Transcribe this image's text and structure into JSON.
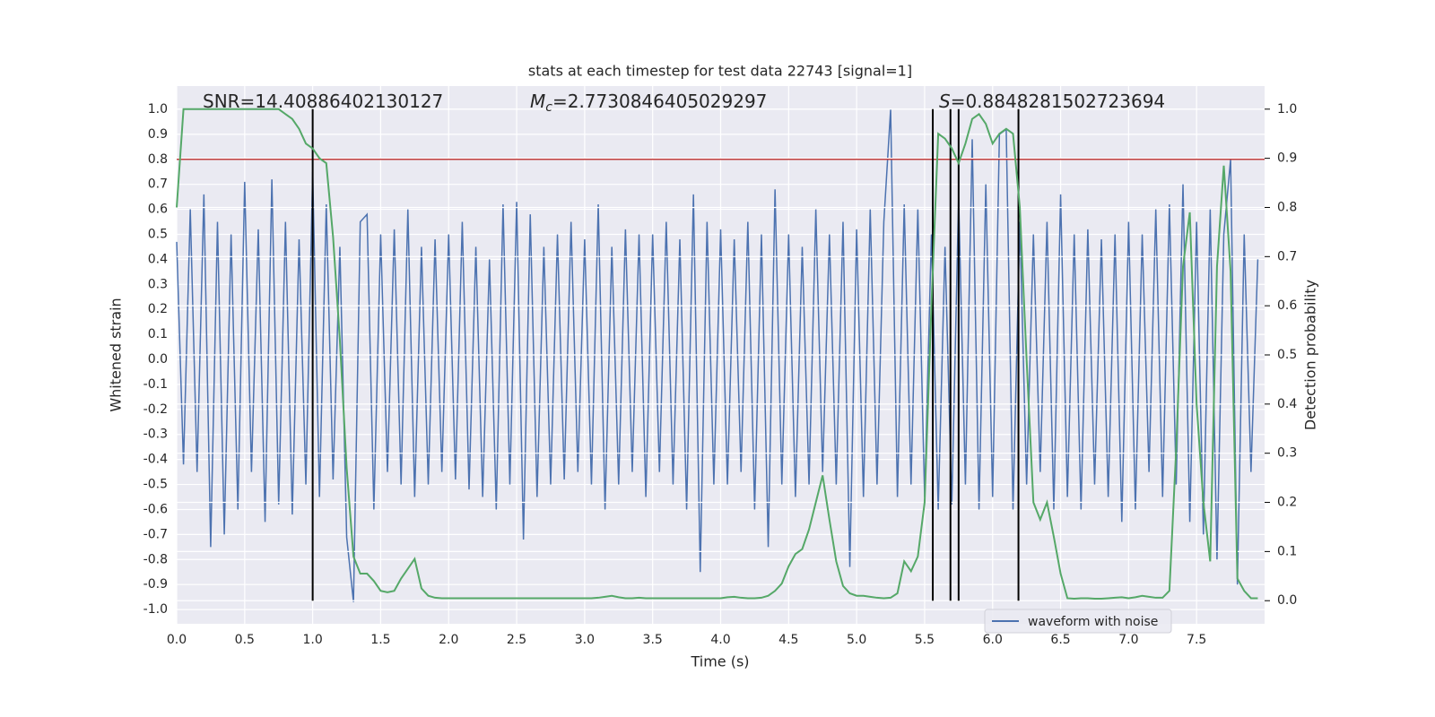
{
  "chart_data": {
    "type": "line",
    "title": "stats at each timestep for test data 22743 [signal=1]",
    "x_label": "Time (s)",
    "y_label": "Whitened strain",
    "y2_label": "Detection probability",
    "xlim": [
      0,
      8
    ],
    "ylim": [
      -1.057,
      1.093
    ],
    "y2lim": [
      -0.047,
      1.047
    ],
    "xticks": [
      {
        "value": 0,
        "label": "0.0"
      },
      0.5,
      {
        "value": 1,
        "label": "1.0"
      },
      1.5,
      {
        "value": 2,
        "label": "2.0"
      },
      2.5,
      {
        "value": 3,
        "label": "3.0"
      },
      3.5,
      {
        "value": 4,
        "label": "4.0"
      },
      4.5,
      {
        "value": 5,
        "label": "5.0"
      },
      5.5,
      {
        "value": 6,
        "label": "6.0"
      },
      6.5,
      {
        "value": 7,
        "label": "7.0"
      },
      7.5
    ],
    "yticks": [
      {
        "value": -1,
        "label": "-1.0"
      },
      -0.9,
      -0.8,
      -0.7,
      -0.6,
      -0.5,
      -0.4,
      -0.3,
      -0.2,
      -0.1,
      {
        "value": 0,
        "label": "0.0"
      },
      0.1,
      0.2,
      0.3,
      0.4,
      0.5,
      0.6,
      0.7,
      0.8,
      0.9,
      {
        "value": 1,
        "label": "1.0"
      }
    ],
    "y2ticks": [
      {
        "value": 0,
        "label": "0.0"
      },
      0.1,
      0.2,
      0.3,
      0.4,
      0.5,
      0.6,
      0.7,
      0.8,
      0.9,
      {
        "value": 1,
        "label": "1.0"
      }
    ],
    "grid": true,
    "legend": "lower right",
    "x": [
      0,
      0.05,
      0.1,
      0.15,
      0.2,
      0.25,
      0.3,
      0.35,
      0.4,
      0.45,
      0.5,
      0.55,
      0.6,
      0.65,
      0.7,
      0.75,
      0.8,
      0.85,
      0.9,
      0.95,
      1,
      1.05,
      1.1,
      1.15,
      1.2,
      1.25,
      1.3,
      1.35,
      1.4,
      1.45,
      1.5,
      1.55,
      1.6,
      1.65,
      1.7,
      1.75,
      1.8,
      1.85,
      1.9,
      1.95,
      2,
      2.05,
      2.1,
      2.15,
      2.2,
      2.25,
      2.3,
      2.35,
      2.4,
      2.45,
      2.5,
      2.55,
      2.6,
      2.65,
      2.7,
      2.75,
      2.8,
      2.85,
      2.9,
      2.95,
      3,
      3.05,
      3.1,
      3.15,
      3.2,
      3.25,
      3.3,
      3.35,
      3.4,
      3.45,
      3.5,
      3.55,
      3.6,
      3.65,
      3.7,
      3.75,
      3.8,
      3.85,
      3.9,
      3.95,
      4,
      4.05,
      4.1,
      4.15,
      4.2,
      4.25,
      4.3,
      4.35,
      4.4,
      4.45,
      4.5,
      4.55,
      4.6,
      4.65,
      4.7,
      4.75,
      4.8,
      4.85,
      4.9,
      4.95,
      5,
      5.05,
      5.1,
      5.15,
      5.2,
      5.25,
      5.3,
      5.35,
      5.4,
      5.45,
      5.5,
      5.55,
      5.6,
      5.65,
      5.7,
      5.75,
      5.8,
      5.85,
      5.9,
      5.95,
      6,
      6.05,
      6.1,
      6.15,
      6.2,
      6.25,
      6.3,
      6.35,
      6.4,
      6.45,
      6.5,
      6.55,
      6.6,
      6.65,
      6.7,
      6.75,
      6.8,
      6.85,
      6.9,
      6.95,
      7,
      7.05,
      7.1,
      7.15,
      7.2,
      7.25,
      7.3,
      7.35,
      7.4,
      7.45,
      7.5,
      7.55,
      7.6,
      7.65,
      7.7,
      7.75,
      7.8,
      7.85,
      7.9,
      7.95
    ],
    "series": [
      {
        "name": "waveform with noise",
        "color": "#4c72b0",
        "values": [
          0.47,
          -0.42,
          0.6,
          -0.45,
          0.66,
          -0.75,
          0.55,
          -0.7,
          0.5,
          -0.6,
          0.71,
          -0.45,
          0.52,
          -0.65,
          0.72,
          -0.58,
          0.55,
          -0.62,
          0.48,
          -0.5,
          0.75,
          -0.55,
          0.62,
          -0.48,
          0.45,
          -0.71,
          -0.97,
          0.55,
          0.58,
          -0.6,
          0.5,
          -0.45,
          0.52,
          -0.5,
          0.6,
          -0.55,
          0.45,
          -0.5,
          0.48,
          -0.45,
          0.5,
          -0.48,
          0.55,
          -0.52,
          0.45,
          -0.55,
          0.4,
          -0.6,
          0.62,
          -0.5,
          0.63,
          -0.72,
          0.58,
          -0.55,
          0.45,
          -0.5,
          0.5,
          -0.48,
          0.55,
          -0.45,
          0.48,
          -0.5,
          0.62,
          -0.6,
          0.45,
          -0.5,
          0.52,
          -0.45,
          0.5,
          -0.55,
          0.5,
          -0.45,
          0.55,
          -0.5,
          0.48,
          -0.6,
          0.66,
          -0.85,
          0.55,
          -0.5,
          0.52,
          -0.5,
          0.48,
          -0.45,
          0.55,
          -0.6,
          0.5,
          -0.75,
          0.68,
          -0.5,
          0.5,
          -0.55,
          0.45,
          -0.5,
          0.6,
          -0.45,
          0.5,
          -0.5,
          0.55,
          -0.83,
          0.52,
          -0.55,
          0.6,
          -0.5,
          0.55,
          1.0,
          -0.55,
          0.62,
          -0.5,
          0.6,
          -0.55,
          0.5,
          -0.6,
          0.45,
          -0.58,
          0.65,
          -0.5,
          0.88,
          -0.6,
          0.7,
          -0.55,
          0.9,
          0.92,
          -0.6,
          0.55,
          -0.5,
          0.5,
          -0.45,
          0.55,
          -0.6,
          0.66,
          -0.55,
          0.5,
          -0.6,
          0.52,
          -0.5,
          0.48,
          -0.55,
          0.5,
          -0.65,
          0.55,
          -0.6,
          0.5,
          -0.45,
          0.6,
          -0.55,
          0.62,
          -0.5,
          0.7,
          -0.65,
          0.55,
          -0.7,
          0.6,
          -0.8,
          0.5,
          0.8,
          -0.9,
          0.5,
          -0.45,
          0.4
        ]
      }
    ],
    "probability": {
      "axis": "y2",
      "color": "#55a868",
      "values": [
        0.8,
        1.0,
        1.0,
        1.0,
        1.0,
        1.0,
        1.0,
        1.0,
        1.0,
        1.0,
        1.0,
        1.0,
        1.0,
        1.0,
        1.0,
        1.0,
        0.99,
        0.98,
        0.96,
        0.93,
        0.92,
        0.9,
        0.89,
        0.74,
        0.53,
        0.27,
        0.09,
        0.055,
        0.055,
        0.04,
        0.02,
        0.017,
        0.02,
        0.045,
        0.065,
        0.085,
        0.025,
        0.01,
        0.006,
        0.005,
        0.005,
        0.005,
        0.005,
        0.005,
        0.005,
        0.005,
        0.005,
        0.005,
        0.005,
        0.005,
        0.005,
        0.005,
        0.005,
        0.005,
        0.005,
        0.005,
        0.005,
        0.005,
        0.005,
        0.005,
        0.005,
        0.005,
        0.006,
        0.008,
        0.01,
        0.007,
        0.005,
        0.005,
        0.006,
        0.005,
        0.005,
        0.005,
        0.005,
        0.005,
        0.005,
        0.005,
        0.005,
        0.005,
        0.005,
        0.005,
        0.005,
        0.007,
        0.008,
        0.006,
        0.005,
        0.005,
        0.006,
        0.01,
        0.02,
        0.035,
        0.07,
        0.095,
        0.105,
        0.145,
        0.2,
        0.255,
        0.165,
        0.08,
        0.03,
        0.015,
        0.01,
        0.01,
        0.008,
        0.006,
        0.005,
        0.006,
        0.015,
        0.08,
        0.06,
        0.09,
        0.2,
        0.6,
        0.95,
        0.94,
        0.92,
        0.89,
        0.93,
        0.98,
        0.99,
        0.97,
        0.93,
        0.95,
        0.96,
        0.95,
        0.8,
        0.49,
        0.2,
        0.165,
        0.2,
        0.13,
        0.055,
        0.005,
        0.004,
        0.005,
        0.005,
        0.004,
        0.004,
        0.005,
        0.006,
        0.007,
        0.005,
        0.007,
        0.01,
        0.008,
        0.006,
        0.006,
        0.02,
        0.31,
        0.68,
        0.79,
        0.4,
        0.2,
        0.08,
        0.68,
        0.885,
        0.67,
        0.045,
        0.02,
        0.005,
        0.005
      ]
    },
    "threshold": {
      "value": 0.8,
      "color": "#c03d3e"
    },
    "vlines": {
      "x": [
        1.0,
        5.56,
        5.69,
        5.75,
        6.19
      ],
      "y2_span": [
        0,
        1
      ],
      "color": "#000000"
    },
    "annotations": [
      {
        "text": "SNR=14.40886402130127"
      },
      {
        "symbol": "M",
        "subscript": "c",
        "text": "=2.7730846405029297"
      },
      {
        "symbol": "S",
        "text": "=0.8848281502723694"
      }
    ]
  }
}
